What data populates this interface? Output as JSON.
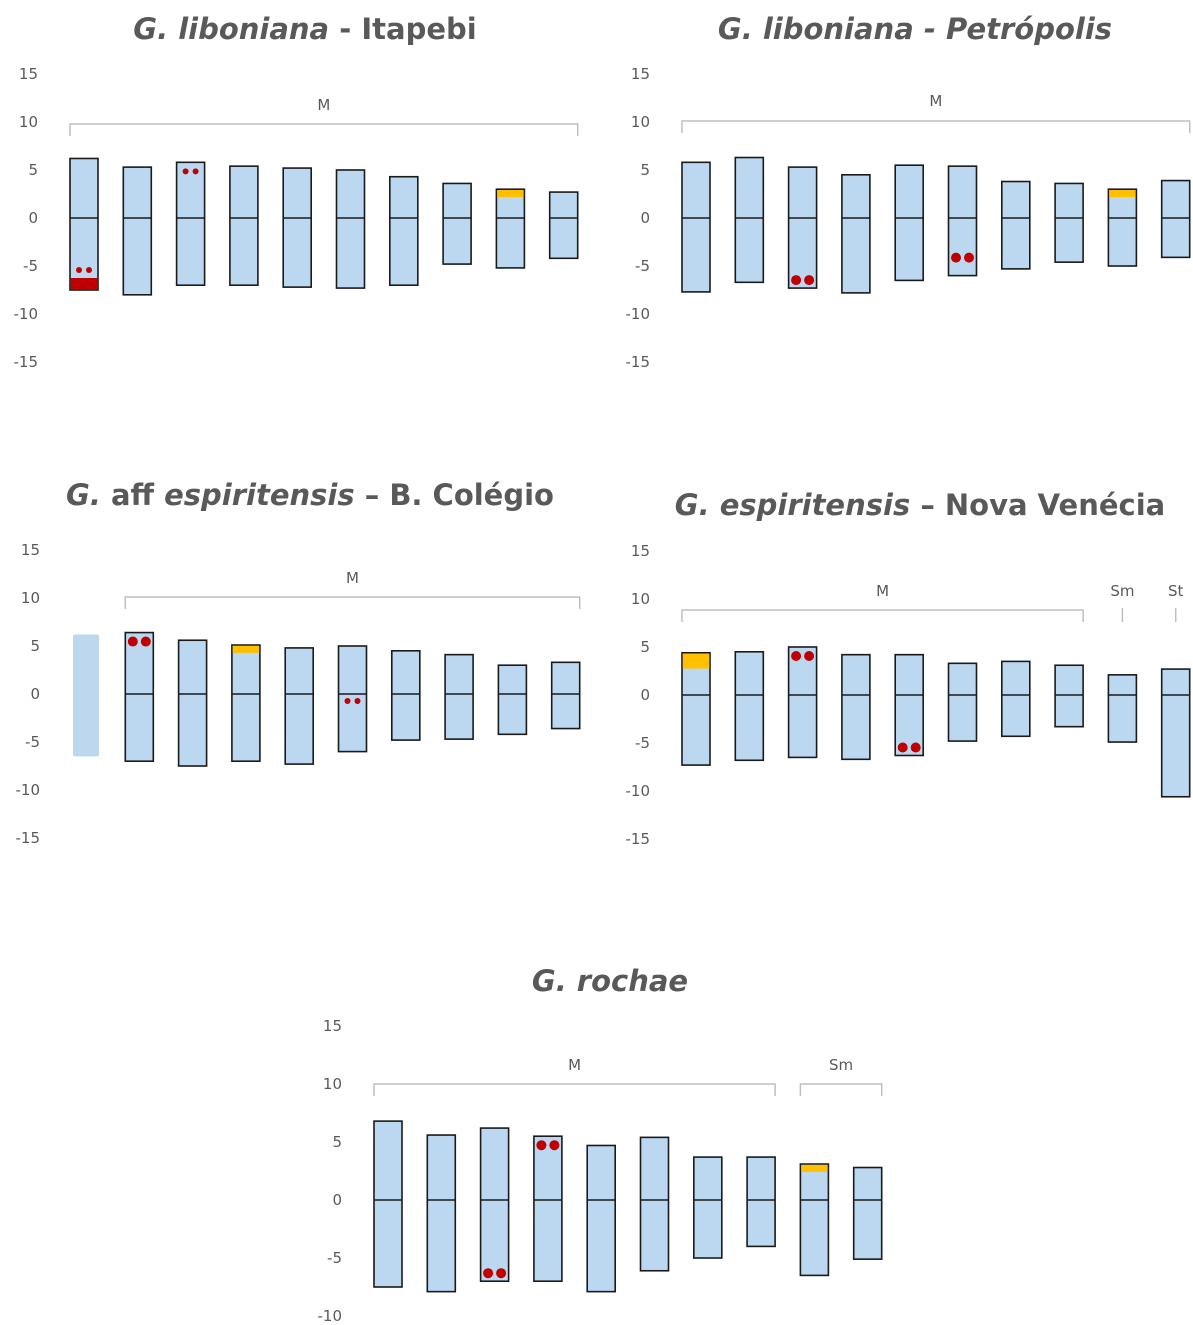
{
  "chart_data": [
    {
      "type": "bar",
      "title": {
        "italic": "G. liboniana",
        "rest": " - Itapebi"
      },
      "yticks": [
        15,
        10,
        5,
        0,
        -5,
        -10,
        -15
      ],
      "ylim": [
        -15,
        15
      ],
      "bars": [
        {
          "top": 6.2,
          "bottom": -7.5,
          "red_band": "bottom",
          "red_dots": "bottom"
        },
        {
          "top": 5.3,
          "bottom": -8.0
        },
        {
          "top": 5.8,
          "bottom": -7.0,
          "red_dots": "top"
        },
        {
          "top": 5.4,
          "bottom": -7.0
        },
        {
          "top": 5.2,
          "bottom": -7.2
        },
        {
          "top": 5.0,
          "bottom": -7.3
        },
        {
          "top": 4.3,
          "bottom": -7.0
        },
        {
          "top": 3.6,
          "bottom": -4.8
        },
        {
          "top": 3.0,
          "bottom": -5.2,
          "yellow": "top"
        },
        {
          "top": 2.7,
          "bottom": -4.2
        }
      ],
      "groups": [
        {
          "label": "M",
          "from": 0,
          "to": 9
        }
      ]
    },
    {
      "type": "bar",
      "title": {
        "italic": "G. liboniana - Petrópolis",
        "rest": ""
      },
      "yticks": [
        15,
        10,
        5,
        0,
        -5,
        -10,
        -15
      ],
      "ylim": [
        -15,
        15
      ],
      "bars": [
        {
          "top": 5.8,
          "bottom": -7.7
        },
        {
          "top": 6.3,
          "bottom": -6.7
        },
        {
          "top": 5.3,
          "bottom": -7.3,
          "red_dots": "bottom"
        },
        {
          "top": 4.5,
          "bottom": -7.8
        },
        {
          "top": 5.5,
          "bottom": -6.5
        },
        {
          "top": 5.4,
          "bottom": -6.0,
          "red_dots": "mid-bottom"
        },
        {
          "top": 3.8,
          "bottom": -5.3
        },
        {
          "top": 3.6,
          "bottom": -4.6
        },
        {
          "top": 3.0,
          "bottom": -5.0,
          "yellow": "top"
        },
        {
          "top": 3.9,
          "bottom": -4.1
        }
      ],
      "groups": [
        {
          "label": "M",
          "from": 0,
          "to": 9
        }
      ]
    },
    {
      "type": "bar",
      "title": {
        "prefix": "G.",
        "mid": " aff ",
        "italic": "espiritensis",
        "rest": " – B. Colégio"
      },
      "yticks": [
        15,
        10,
        5,
        0,
        -5,
        -10,
        -15
      ],
      "ylim": [
        -15,
        15
      ],
      "bars": [
        {
          "top": 6.2,
          "bottom": -6.5,
          "ghost": true
        },
        {
          "top": 6.4,
          "bottom": -7.0,
          "red_dots": "top"
        },
        {
          "top": 5.6,
          "bottom": -7.5
        },
        {
          "top": 5.1,
          "bottom": -7.0,
          "yellow": "top"
        },
        {
          "top": 4.8,
          "bottom": -7.3
        },
        {
          "top": 5.0,
          "bottom": -6.0,
          "red_dots": "mid"
        },
        {
          "top": 4.5,
          "bottom": -4.8
        },
        {
          "top": 4.1,
          "bottom": -4.7
        },
        {
          "top": 3.0,
          "bottom": -4.2
        },
        {
          "top": 3.3,
          "bottom": -3.6
        }
      ],
      "groups": [
        {
          "label": "M",
          "from": 1,
          "to": 9
        }
      ]
    },
    {
      "type": "bar",
      "title": {
        "italic": "G. espiritensis",
        "rest": " – Nova Venécia"
      },
      "yticks": [
        15,
        10,
        5,
        0,
        -5,
        -10,
        -15
      ],
      "ylim": [
        -15,
        15
      ],
      "bars": [
        {
          "top": 4.4,
          "bottom": -7.3,
          "yellow": "top-big"
        },
        {
          "top": 4.5,
          "bottom": -6.8
        },
        {
          "top": 5.0,
          "bottom": -6.5,
          "red_dots": "top"
        },
        {
          "top": 4.2,
          "bottom": -6.7
        },
        {
          "top": 4.2,
          "bottom": -6.3,
          "red_dots": "bottom"
        },
        {
          "top": 3.3,
          "bottom": -4.8
        },
        {
          "top": 3.5,
          "bottom": -4.3
        },
        {
          "top": 3.1,
          "bottom": -3.3
        },
        {
          "top": 2.1,
          "bottom": -4.9
        },
        {
          "top": 2.7,
          "bottom": -10.6
        }
      ],
      "groups": [
        {
          "label": "M",
          "from": 0,
          "to": 7
        },
        {
          "label": "Sm",
          "from": 8,
          "to": 8
        },
        {
          "label": "St",
          "from": 9,
          "to": 9
        }
      ]
    },
    {
      "type": "bar",
      "title": {
        "italic": "G. rochae",
        "rest": ""
      },
      "yticks": [
        15,
        10,
        5,
        0,
        -5,
        -10
      ],
      "ylim": [
        -10,
        15
      ],
      "bars": [
        {
          "top": 6.8,
          "bottom": -7.5
        },
        {
          "top": 5.6,
          "bottom": -7.9
        },
        {
          "top": 6.2,
          "bottom": -7.0,
          "red_dots": "bottom"
        },
        {
          "top": 5.5,
          "bottom": -7.0,
          "red_dots": "top"
        },
        {
          "top": 4.7,
          "bottom": -7.9
        },
        {
          "top": 5.4,
          "bottom": -6.1
        },
        {
          "top": 3.7,
          "bottom": -5.0
        },
        {
          "top": 3.7,
          "bottom": -4.0
        },
        {
          "top": 3.1,
          "bottom": -6.5,
          "yellow": "top"
        },
        {
          "top": 2.8,
          "bottom": -5.1
        }
      ],
      "groups": [
        {
          "label": "M",
          "from": 0,
          "to": 7
        },
        {
          "label": "Sm",
          "from": 8,
          "to": 9
        }
      ]
    }
  ],
  "colors": {
    "bar_fill": "#bcd7f0",
    "ghost_fill": "#bdd7ee",
    "outline": "#1a1a1a",
    "red": "#c00000",
    "yellow": "#ffc000",
    "bracket": "#bfbfbf",
    "text": "#595959"
  }
}
